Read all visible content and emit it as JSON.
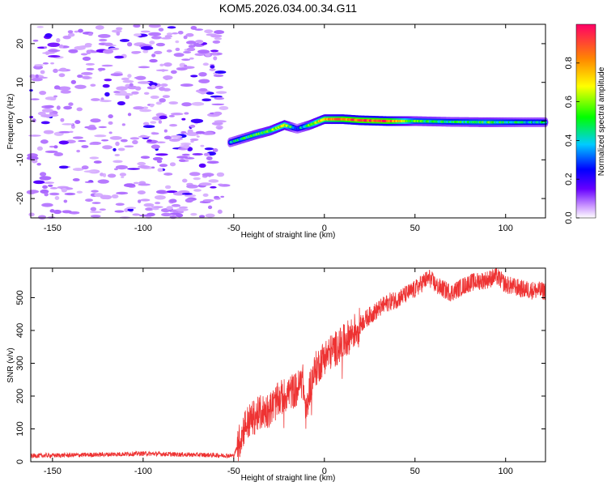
{
  "title": "KOM5.2026.034.00.34.G11",
  "chart_data": [
    {
      "type": "heatmap",
      "name": "spectrogram",
      "xlabel": "Height of straight line (km)",
      "ylabel": "Frequency (Hz)",
      "xlim": [
        -162,
        122
      ],
      "ylim": [
        -25,
        25
      ],
      "xticks": [
        -150,
        -100,
        -50,
        0,
        50,
        100
      ],
      "yticks": [
        -20,
        -10,
        0,
        10,
        20
      ],
      "colorbar": {
        "label": "Normalized spectral amplitude",
        "range": [
          0,
          1
        ],
        "ticks": [
          0.0,
          0.2,
          0.4,
          0.6,
          0.8
        ],
        "colors": [
          "#ffffff",
          "#cc99ff",
          "#6600ff",
          "#0000ff",
          "#00ccff",
          "#00ff00",
          "#ffff00",
          "#ff8800",
          "#ff0066"
        ]
      },
      "signal_track": [
        {
          "x": -52,
          "freq": -5.5,
          "amp": 0.35
        },
        {
          "x": -45,
          "freq": -4.5,
          "amp": 0.45
        },
        {
          "x": -38,
          "freq": -3.5,
          "amp": 0.5
        },
        {
          "x": -30,
          "freq": -2.5,
          "amp": 0.55
        },
        {
          "x": -22,
          "freq": -1.0,
          "amp": 0.7
        },
        {
          "x": -15,
          "freq": -2.0,
          "amp": 0.3
        },
        {
          "x": -8,
          "freq": -1.0,
          "amp": 0.55
        },
        {
          "x": 0,
          "freq": 0.5,
          "amp": 0.75
        },
        {
          "x": 10,
          "freq": 0.5,
          "amp": 0.85
        },
        {
          "x": 20,
          "freq": 0.2,
          "amp": 0.9
        },
        {
          "x": 35,
          "freq": 0.0,
          "amp": 0.9
        },
        {
          "x": 50,
          "freq": 0.0,
          "amp": 0.5
        },
        {
          "x": 70,
          "freq": -0.2,
          "amp": 0.45
        },
        {
          "x": 90,
          "freq": -0.3,
          "amp": 0.5
        },
        {
          "x": 110,
          "freq": -0.3,
          "amp": 0.4
        },
        {
          "x": 122,
          "freq": -0.3,
          "amp": 0.4
        }
      ],
      "noise_region": {
        "x": [
          -162,
          -55
        ],
        "freq": [
          -25,
          25
        ],
        "amp": 0.2
      }
    },
    {
      "type": "line",
      "name": "snr",
      "xlabel": "Height of straight line (km)",
      "ylabel": "SNR (v/v)",
      "xlim": [
        -162,
        122
      ],
      "ylim": [
        0,
        590
      ],
      "xticks": [
        -150,
        -100,
        -50,
        0,
        50,
        100
      ],
      "yticks": [
        0,
        100,
        200,
        300,
        400,
        500
      ],
      "color": "#ee3333",
      "series": [
        {
          "name": "SNR",
          "x": [
            -162,
            -140,
            -120,
            -100,
            -80,
            -60,
            -50,
            -47,
            -44,
            -40,
            -35,
            -30,
            -25,
            -20,
            -15,
            -12,
            -10,
            -8,
            -5,
            0,
            5,
            10,
            15,
            20,
            25,
            30,
            35,
            40,
            45,
            50,
            55,
            58,
            62,
            70,
            80,
            90,
            95,
            100,
            110,
            122
          ],
          "y": [
            18,
            20,
            22,
            25,
            22,
            20,
            18,
            60,
            110,
            130,
            150,
            160,
            190,
            210,
            220,
            250,
            140,
            230,
            280,
            320,
            340,
            360,
            390,
            420,
            445,
            465,
            485,
            495,
            510,
            525,
            550,
            560,
            535,
            515,
            545,
            555,
            565,
            540,
            525,
            520
          ]
        }
      ]
    }
  ]
}
